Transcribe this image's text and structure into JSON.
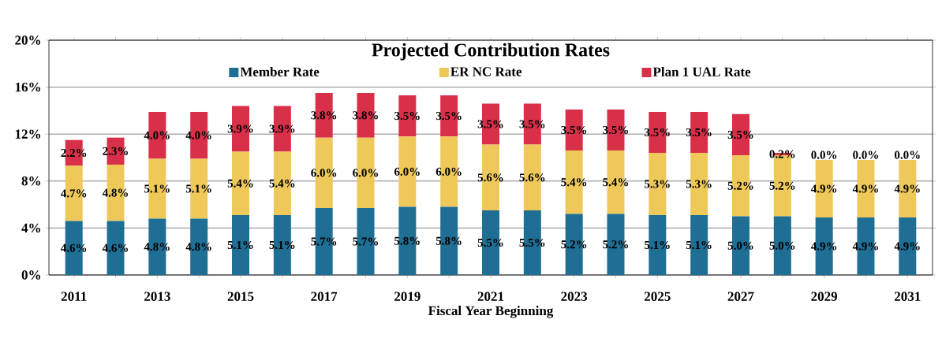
{
  "chart_data": {
    "type": "bar",
    "stacked": true,
    "title": "Projected Contribution Rates",
    "xlabel": "Fiscal Year Beginning",
    "categories": [
      "2011",
      null,
      "2013",
      null,
      "2015",
      null,
      "2017",
      null,
      "2019",
      null,
      "2021",
      null,
      "2023",
      null,
      "2025",
      null,
      "2027",
      null,
      "2029",
      null,
      "2031"
    ],
    "series": [
      {
        "name": "Member Rate",
        "color": "#1f6e94",
        "values": [
          4.6,
          4.6,
          4.8,
          4.8,
          5.1,
          5.1,
          5.7,
          5.7,
          5.8,
          5.8,
          5.5,
          5.5,
          5.2,
          5.2,
          5.1,
          5.1,
          5.0,
          5.0,
          4.9,
          4.9,
          4.9
        ],
        "value_labels": [
          "4.6%",
          "4.6%",
          "4.8%",
          "4.8%",
          "5.1%",
          "5.1%",
          "5.7%",
          "5.7%",
          "5.8%",
          "5.8%",
          "5.5%",
          "5.5%",
          "5.2%",
          "5.2%",
          "5.1%",
          "5.1%",
          "5.0%",
          "5.0%",
          "4.9%",
          "4.9%",
          "4.9%"
        ]
      },
      {
        "name": "ER NC Rate",
        "color": "#eec95a",
        "values": [
          4.7,
          4.8,
          5.1,
          5.1,
          5.4,
          5.4,
          6.0,
          6.0,
          6.0,
          6.0,
          5.6,
          5.6,
          5.4,
          5.4,
          5.3,
          5.3,
          5.2,
          5.2,
          4.9,
          4.9,
          4.9
        ],
        "value_labels": [
          "4.7%",
          "4.8%",
          "5.1%",
          "5.1%",
          "5.4%",
          "5.4%",
          "6.0%",
          "6.0%",
          "6.0%",
          "6.0%",
          "5.6%",
          "5.6%",
          "5.4%",
          "5.4%",
          "5.3%",
          "5.3%",
          "5.2%",
          "5.2%",
          "4.9%",
          "4.9%",
          "4.9%"
        ]
      },
      {
        "name": "Plan 1 UAL Rate",
        "color": "#d9304a",
        "values": [
          2.2,
          2.3,
          4.0,
          4.0,
          3.9,
          3.9,
          3.8,
          3.8,
          3.5,
          3.5,
          3.5,
          3.5,
          3.5,
          3.5,
          3.5,
          3.5,
          3.5,
          0.2,
          0.0,
          0.0,
          0.0
        ],
        "value_labels": [
          "2.2%",
          "2.3%",
          "4.0%",
          "4.0%",
          "3.9%",
          "3.9%",
          "3.8%",
          "3.8%",
          "3.5%",
          "3.5%",
          "3.5%",
          "3.5%",
          "3.5%",
          "3.5%",
          "3.5%",
          "3.5%",
          "3.5%",
          "0.2%",
          "0.0%",
          "0.0%",
          "0.0%"
        ]
      }
    ],
    "ylim": [
      0,
      20
    ],
    "yticks": [
      {
        "value": 0,
        "label": "0%"
      },
      {
        "value": 4,
        "label": "4%"
      },
      {
        "value": 8,
        "label": "8%"
      },
      {
        "value": 12,
        "label": "12%"
      },
      {
        "value": 16,
        "label": "16%"
      },
      {
        "value": 20,
        "label": "20%"
      }
    ],
    "grid": "y",
    "legend": "top"
  }
}
